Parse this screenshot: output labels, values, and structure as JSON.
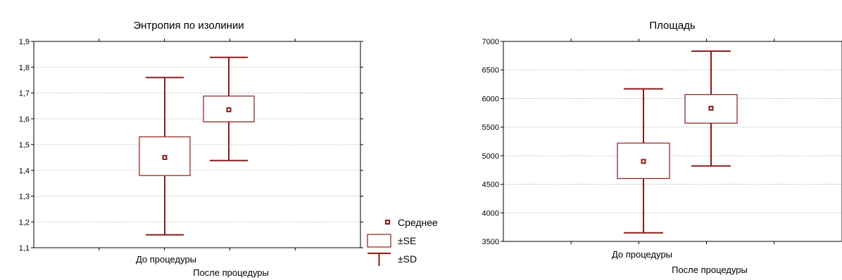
{
  "colors": {
    "series": "#8b1a1a",
    "grid": "#b0b0b0",
    "axis": "#000000"
  },
  "legend": {
    "mean": "Среднее",
    "se": "±SE",
    "sd": "±SD"
  },
  "chart_data": [
    {
      "type": "box",
      "title": "Энтропия по изолинии",
      "categories": [
        "До процедуры",
        "После процедуры"
      ],
      "ylim": [
        1.1,
        1.9
      ],
      "yticks": [
        "1,1",
        "1,2",
        "1,3",
        "1,4",
        "1,5",
        "1,6",
        "1,7",
        "1,8",
        "1,9"
      ],
      "grid": true,
      "legend_position": "bottom-right",
      "series": [
        {
          "category": "До процедуры",
          "mean": 1.45,
          "se_low": 1.38,
          "se_high": 1.53,
          "sd_low": 1.15,
          "sd_high": 1.76
        },
        {
          "category": "После процедуры",
          "mean": 1.635,
          "se_low": 1.588,
          "se_high": 1.688,
          "sd_low": 1.438,
          "sd_high": 1.838
        }
      ]
    },
    {
      "type": "box",
      "title": "Площадь",
      "categories": [
        "До процедуры",
        "После процедуры"
      ],
      "ylim": [
        3500,
        7000
      ],
      "yticks": [
        "3500",
        "4000",
        "4500",
        "5000",
        "5500",
        "6000",
        "6500",
        "7000"
      ],
      "grid": true,
      "series": [
        {
          "category": "До процедуры",
          "mean": 4900,
          "se_low": 4600,
          "se_high": 5220,
          "sd_low": 3650,
          "sd_high": 6170
        },
        {
          "category": "После процедуры",
          "mean": 5830,
          "se_low": 5570,
          "se_high": 6070,
          "sd_low": 4820,
          "sd_high": 6830
        }
      ]
    }
  ]
}
